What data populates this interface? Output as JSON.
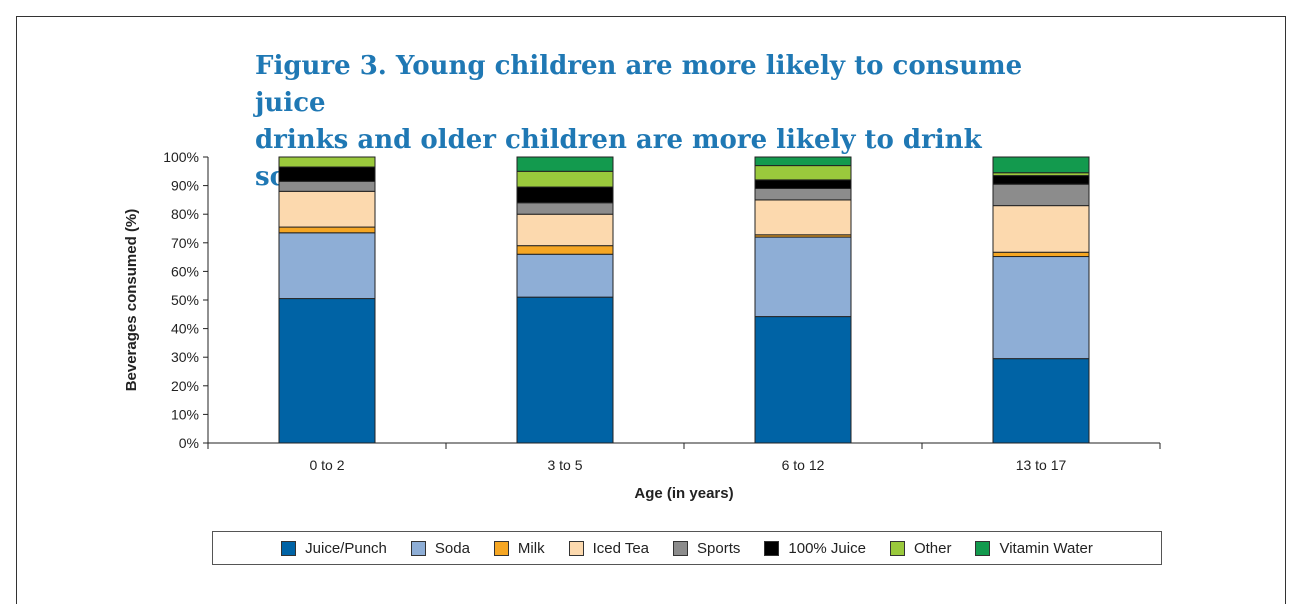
{
  "title": {
    "line1": "Figure 3. Young children are more likely to consume juice",
    "line2": "drinks and older children are more likely to drink soda."
  },
  "chart_data": {
    "type": "bar",
    "stacked": true,
    "categories": [
      "0 to 2",
      "3 to 5",
      "6 to 12",
      "13 to 17"
    ],
    "xlabel": "Age (in years)",
    "ylabel": "Beverages consumed (%)",
    "ylim": [
      0,
      100
    ],
    "yticks": [
      "0%",
      "10%",
      "20%",
      "30%",
      "40%",
      "50%",
      "60%",
      "70%",
      "80%",
      "90%",
      "100%"
    ],
    "legend_position": "bottom",
    "series": [
      {
        "name": "Juice/Punch",
        "color": "#0063a5",
        "values": [
          50.5,
          51,
          44.2,
          29.5
        ]
      },
      {
        "name": "Soda",
        "color": "#8eaed6",
        "values": [
          23,
          15,
          27.8,
          35.7
        ]
      },
      {
        "name": "Milk",
        "color": "#f5a623",
        "values": [
          2,
          3,
          0.8,
          1.5
        ]
      },
      {
        "name": "Iced Tea",
        "color": "#fcd9ae",
        "values": [
          12.5,
          11,
          12.2,
          16.3
        ]
      },
      {
        "name": "Sports",
        "color": "#8c8c8c",
        "values": [
          3.5,
          4,
          4,
          7.5
        ]
      },
      {
        "name": "100% Juice",
        "color": "#000000",
        "values": [
          5,
          5.5,
          3,
          3
        ]
      },
      {
        "name": "Other",
        "color": "#9ac93c",
        "values": [
          3.5,
          5.5,
          5,
          1
        ]
      },
      {
        "name": "Vitamin Water",
        "color": "#139a4e",
        "values": [
          0,
          5,
          3,
          5.5
        ]
      }
    ]
  }
}
